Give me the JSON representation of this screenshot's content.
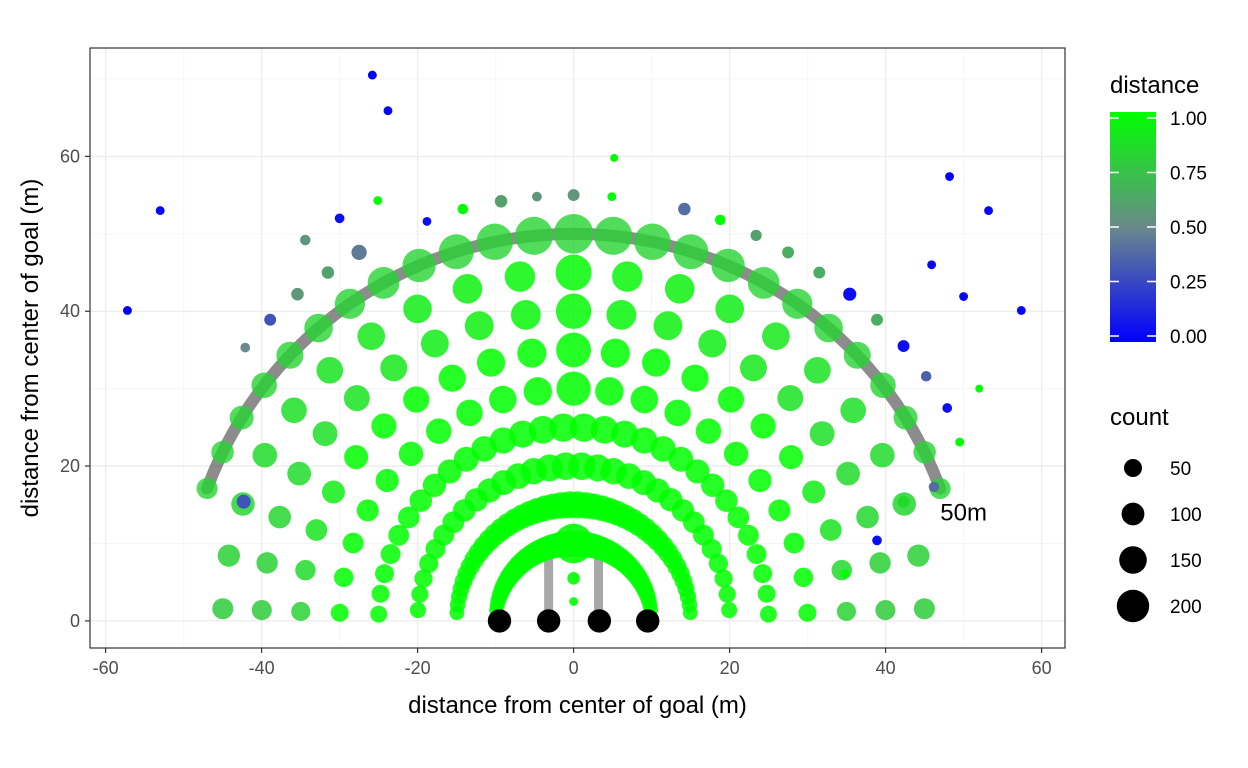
{
  "chart_data": {
    "type": "scatter",
    "xlabel": "distance from center of goal (m)",
    "ylabel": "distance from center of goal (m)",
    "xlim": [
      -62,
      63
    ],
    "ylim": [
      -3.5,
      74
    ],
    "x_ticks": [
      -60,
      -40,
      -20,
      0,
      20,
      40,
      60
    ],
    "y_ticks": [
      0,
      20,
      40,
      60
    ],
    "x_tick_labels": [
      "-60",
      "-40",
      "-20",
      "0",
      "20",
      "40",
      "60"
    ],
    "y_tick_labels": [
      "0",
      "20",
      "40",
      "60"
    ],
    "grid": true,
    "annotation": {
      "label": "50m",
      "x": 50,
      "y": 14
    },
    "arc": {
      "radius": 50,
      "angle_start_deg": 20,
      "angle_end_deg": 160,
      "color": "#666666",
      "alpha": 0.75
    },
    "goal_frame": {
      "color": "#999999",
      "posts_x": [
        -3.2,
        3.2
      ],
      "crossbar_y": 9,
      "posts_bottom_y": 1
    },
    "ring_radii": [
      10,
      15,
      20,
      25,
      30,
      35,
      40,
      45
    ],
    "center_points": [
      {
        "x": 0,
        "y": 10,
        "count": 200,
        "distance": 1.0
      },
      {
        "x": 0,
        "y": 5.5,
        "count": 20,
        "distance": 1.0
      },
      {
        "x": 0,
        "y": 2.5,
        "count": 10,
        "distance": 1.0
      }
    ],
    "baseline_points": [
      {
        "x": -9.5,
        "y": 0,
        "count": 70
      },
      {
        "x": -3.2,
        "y": 0,
        "count": 70
      },
      {
        "x": 3.3,
        "y": 0,
        "count": 70
      },
      {
        "x": 9.5,
        "y": 0,
        "count": 70
      }
    ],
    "scattered_points": [
      {
        "x": -57.2,
        "y": 40.1,
        "count": 10,
        "distance": 0.0
      },
      {
        "x": -53,
        "y": 53,
        "count": 10,
        "distance": 0.02
      },
      {
        "x": -25.8,
        "y": 70.5,
        "count": 10,
        "distance": 0.0
      },
      {
        "x": -23.8,
        "y": 65.9,
        "count": 10,
        "distance": 0.02
      },
      {
        "x": -30,
        "y": 52,
        "count": 12,
        "distance": 0.05
      },
      {
        "x": -18.8,
        "y": 51.6,
        "count": 10,
        "distance": 0.05
      },
      {
        "x": -42.1,
        "y": 35.3,
        "count": 12,
        "distance": 0.5
      },
      {
        "x": -38.9,
        "y": 38.9,
        "count": 18,
        "distance": 0.3
      },
      {
        "x": -42.3,
        "y": 15.4,
        "count": 25,
        "distance": 0.3
      },
      {
        "x": -34.4,
        "y": 49.2,
        "count": 14,
        "distance": 0.55
      },
      {
        "x": -31.5,
        "y": 45.0,
        "count": 20,
        "distance": 0.6
      },
      {
        "x": -35.4,
        "y": 42.2,
        "count": 20,
        "distance": 0.55
      },
      {
        "x": -27.5,
        "y": 47.6,
        "count": 30,
        "distance": 0.45
      },
      {
        "x": -25.1,
        "y": 54.3,
        "count": 10,
        "distance": 1.0
      },
      {
        "x": -9.3,
        "y": 54.2,
        "count": 20,
        "distance": 0.6
      },
      {
        "x": -4.7,
        "y": 54.8,
        "count": 12,
        "distance": 0.55
      },
      {
        "x": 0,
        "y": 55,
        "count": 18,
        "distance": 0.55
      },
      {
        "x": 4.9,
        "y": 54.8,
        "count": 10,
        "distance": 1.0
      },
      {
        "x": 5.2,
        "y": 59.8,
        "count": 8,
        "distance": 1.0
      },
      {
        "x": -14.2,
        "y": 53.2,
        "count": 14,
        "distance": 1.0
      },
      {
        "x": 14.2,
        "y": 53.2,
        "count": 20,
        "distance": 0.4
      },
      {
        "x": 18.8,
        "y": 51.8,
        "count": 14,
        "distance": 1.0
      },
      {
        "x": 23.4,
        "y": 49.8,
        "count": 16,
        "distance": 0.6
      },
      {
        "x": 27.5,
        "y": 47.6,
        "count": 18,
        "distance": 0.65
      },
      {
        "x": 31.5,
        "y": 45.0,
        "count": 18,
        "distance": 0.65
      },
      {
        "x": 35.4,
        "y": 42.2,
        "count": 22,
        "distance": 0.05
      },
      {
        "x": 38.9,
        "y": 38.9,
        "count": 18,
        "distance": 0.65
      },
      {
        "x": 42.3,
        "y": 35.5,
        "count": 18,
        "distance": 0.05
      },
      {
        "x": 45.9,
        "y": 46.0,
        "count": 10,
        "distance": 0.02
      },
      {
        "x": 48.2,
        "y": 57.4,
        "count": 10,
        "distance": 0.0
      },
      {
        "x": 50,
        "y": 41.9,
        "count": 10,
        "distance": 0.02
      },
      {
        "x": 53.2,
        "y": 53.0,
        "count": 10,
        "distance": 0.02
      },
      {
        "x": 57.4,
        "y": 40.1,
        "count": 10,
        "distance": 0.02
      },
      {
        "x": 45.2,
        "y": 31.6,
        "count": 14,
        "distance": 0.35
      },
      {
        "x": 47.9,
        "y": 27.5,
        "count": 12,
        "distance": 0.05
      },
      {
        "x": 52,
        "y": 30,
        "count": 8,
        "distance": 1.0
      },
      {
        "x": 49.5,
        "y": 23.1,
        "count": 10,
        "distance": 1.0
      },
      {
        "x": 46.2,
        "y": 17.3,
        "count": 14,
        "distance": 0.4
      },
      {
        "x": 42.3,
        "y": 15.4,
        "count": 18,
        "distance": 0.85
      },
      {
        "x": 38.9,
        "y": 10.4,
        "count": 12,
        "distance": 0.05
      },
      {
        "x": 34.8,
        "y": 6.1,
        "count": 10,
        "distance": 1.0
      }
    ]
  },
  "legend": {
    "color_title": "distance",
    "color_ticks": [
      "1.00",
      "0.75",
      "0.50",
      "0.25",
      "0.00"
    ],
    "color_values": [
      1.0,
      0.75,
      0.5,
      0.25,
      0.0
    ],
    "color_low": "#0000ff",
    "color_mid": "#6a8a8a",
    "color_high": "#00ff00",
    "size_title": "count",
    "size_labels": [
      "50",
      "100",
      "150",
      "200"
    ],
    "size_values": [
      50,
      100,
      150,
      200
    ]
  },
  "colors": {
    "panel_border": "#333333",
    "grid_major": "#ebebeb",
    "grid_minor": "#f5f5f5",
    "point_black": "#000000"
  }
}
